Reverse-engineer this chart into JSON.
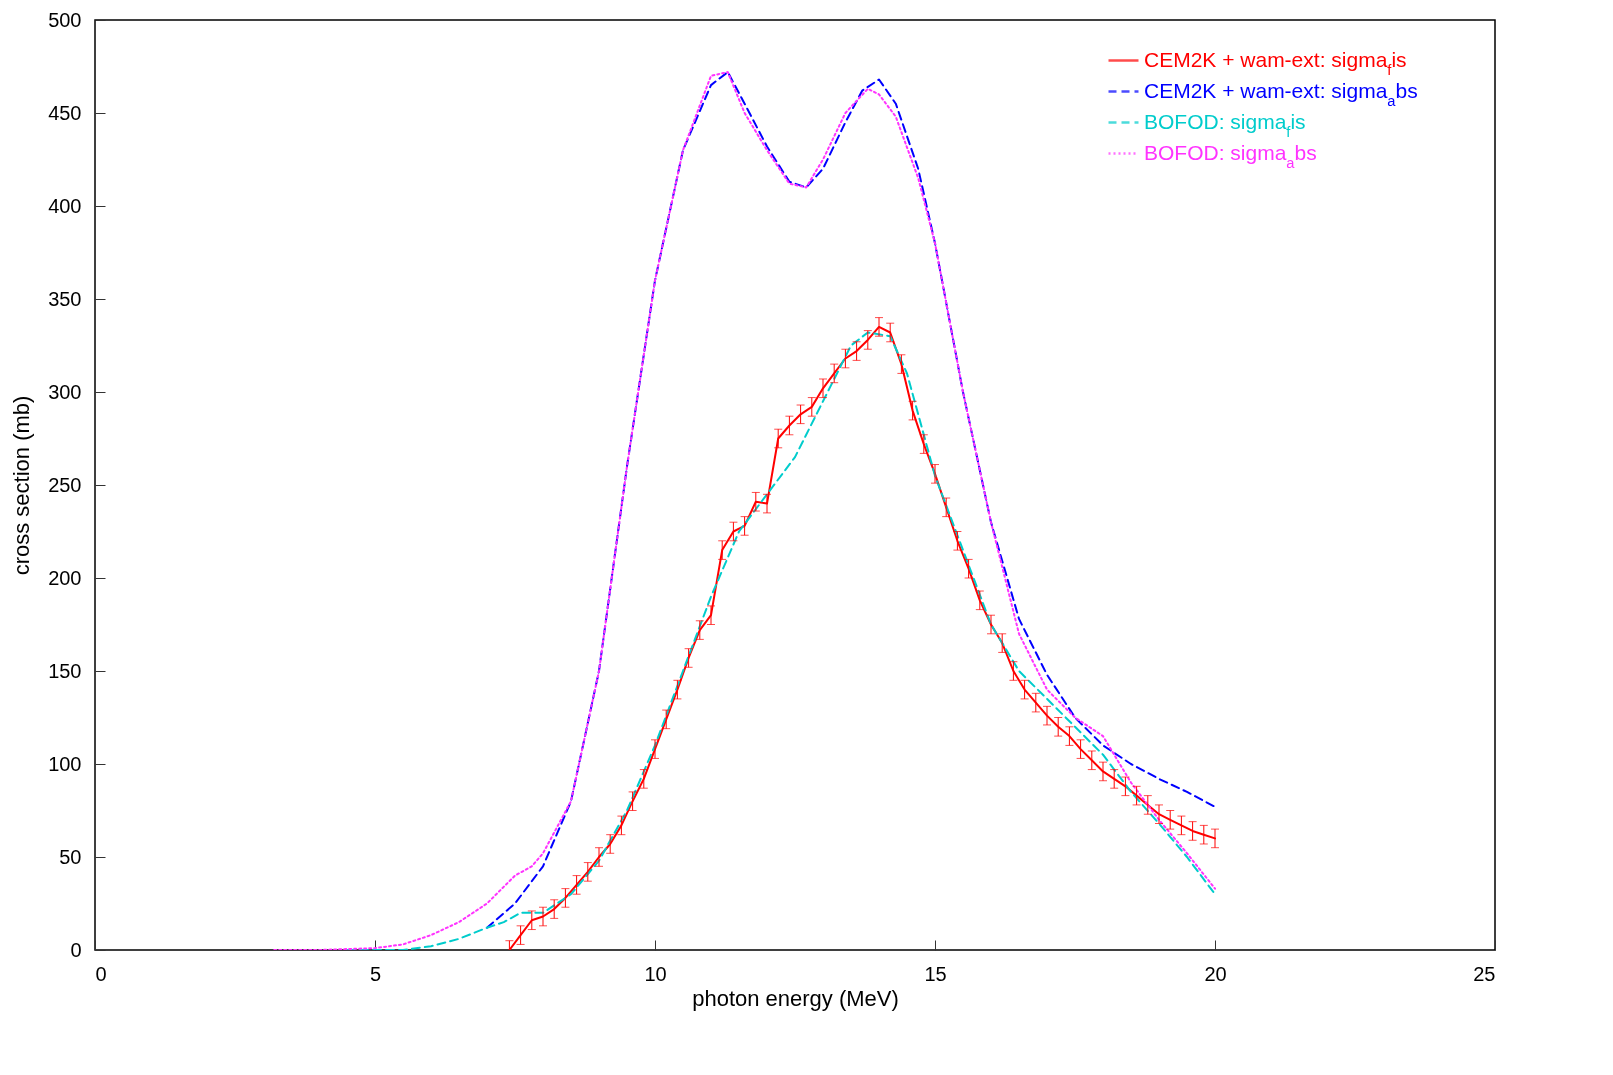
{
  "chart_data": {
    "type": "line",
    "xlabel": "photon energy (MeV)",
    "ylabel": "cross section (mb)",
    "xlim": [
      0,
      25
    ],
    "xticks": [
      0,
      5,
      10,
      15,
      20,
      25
    ],
    "ylim": [
      0,
      500
    ],
    "yticks": [
      0,
      50,
      100,
      150,
      200,
      250,
      300,
      350,
      400,
      450,
      500
    ],
    "grid": false,
    "legend": "top right",
    "series": [
      {
        "name": "CEM2K + wam-ext: sigma$_{f}$is",
        "color": "#ff0000",
        "line_style": "solid",
        "x": [
          7.4,
          7.6,
          7.8,
          8.0,
          8.2,
          8.4,
          8.6,
          8.8,
          9.0,
          9.2,
          9.4,
          9.6,
          9.8,
          10.0,
          10.2,
          10.4,
          10.6,
          10.8,
          11.0,
          11.2,
          11.4,
          11.6,
          11.8,
          12.0,
          12.2,
          12.4,
          12.6,
          12.8,
          13.0,
          13.2,
          13.4,
          13.6,
          13.8,
          14.0,
          14.2,
          14.4,
          14.6,
          14.8,
          15.0,
          15.2,
          15.4,
          15.6,
          15.8,
          16.0,
          16.2,
          16.4,
          16.6,
          16.8,
          17.0,
          17.2,
          17.4,
          17.6,
          17.8,
          18.0,
          18.2,
          18.4,
          18.6,
          18.8,
          19.0,
          19.2,
          19.4,
          19.6,
          19.8,
          20.0
        ],
        "values": [
          0,
          8,
          16,
          18,
          22,
          28,
          35,
          42,
          50,
          57,
          67,
          80,
          92,
          108,
          124,
          140,
          157,
          172,
          180,
          215,
          225,
          228,
          241,
          240,
          275,
          282,
          288,
          292,
          302,
          310,
          318,
          322,
          328,
          335,
          332,
          315,
          290,
          272,
          256,
          238,
          220,
          205,
          188,
          175,
          165,
          150,
          140,
          133,
          126,
          120,
          115,
          108,
          102,
          96,
          92,
          88,
          83,
          78,
          73,
          70,
          67,
          64,
          62,
          60
        ],
        "errors": [
          5,
          5,
          5,
          5,
          5,
          5,
          5,
          5,
          5,
          5,
          5,
          5,
          5,
          5,
          5,
          5,
          5,
          5,
          5,
          5,
          5,
          5,
          5,
          5,
          5,
          5,
          5,
          5,
          5,
          5,
          5,
          5,
          5,
          5,
          5,
          5,
          5,
          5,
          5,
          5,
          5,
          5,
          5,
          5,
          5,
          5,
          5,
          5,
          5,
          5,
          5,
          5,
          5,
          5,
          5,
          5,
          5,
          5,
          5,
          5,
          5,
          5,
          5,
          5
        ]
      },
      {
        "name": "CEM2K + wam-ext: sigma$_{a}$bs",
        "color": "#0000ff",
        "line_style": "dashed",
        "x": [
          7.0,
          7.5,
          8.0,
          8.5,
          9.0,
          9.5,
          10.0,
          10.5,
          11.0,
          11.3,
          11.6,
          12.0,
          12.4,
          12.7,
          13.0,
          13.4,
          13.7,
          14.0,
          14.3,
          14.7,
          15.0,
          15.5,
          16.0,
          16.5,
          17.0,
          17.5,
          18.0,
          18.5,
          19.0,
          19.5,
          20.0
        ],
        "values": [
          12,
          25,
          45,
          80,
          150,
          260,
          360,
          430,
          465,
          472,
          455,
          432,
          413,
          410,
          420,
          445,
          462,
          468,
          455,
          420,
          380,
          300,
          230,
          178,
          148,
          125,
          110,
          100,
          92,
          85,
          77
        ]
      },
      {
        "name": "BOFOD: sigma$_{f}$is",
        "color": "#00cccc",
        "line_style": "dashed",
        "x": [
          4.5,
          5.5,
          6.0,
          6.5,
          7.0,
          7.3,
          7.6,
          8.0,
          8.5,
          9.0,
          9.5,
          10.0,
          10.5,
          11.0,
          11.5,
          12.0,
          12.5,
          13.0,
          13.5,
          13.8,
          14.2,
          14.5,
          15.0,
          15.5,
          16.0,
          16.5,
          17.0,
          17.5,
          18.0,
          18.5,
          19.0,
          19.5,
          20.0
        ],
        "values": [
          0,
          0,
          2,
          6,
          12,
          15,
          20,
          20,
          30,
          48,
          75,
          110,
          150,
          190,
          225,
          245,
          265,
          295,
          325,
          332,
          330,
          310,
          255,
          215,
          175,
          150,
          135,
          120,
          105,
          85,
          68,
          50,
          30
        ]
      },
      {
        "name": "BOFOD: sigma$_{a}$bs",
        "color": "#ff33ff",
        "line_style": "dotted",
        "x": [
          3.2,
          4.0,
          5.0,
          5.5,
          6.0,
          6.5,
          7.0,
          7.5,
          7.8,
          8.0,
          8.5,
          9.0,
          9.5,
          10.0,
          10.5,
          11.0,
          11.3,
          11.6,
          12.0,
          12.4,
          12.7,
          13.0,
          13.4,
          13.8,
          14.0,
          14.3,
          14.7,
          15.0,
          15.5,
          16.0,
          16.5,
          17.0,
          17.5,
          18.0,
          18.2,
          18.5,
          19.0,
          19.5,
          20.0
        ],
        "values": [
          0,
          0,
          1,
          3,
          8,
          15,
          25,
          40,
          45,
          52,
          80,
          150,
          260,
          360,
          430,
          470,
          472,
          450,
          430,
          412,
          410,
          425,
          450,
          463,
          460,
          448,
          415,
          380,
          300,
          230,
          170,
          140,
          125,
          115,
          105,
          90,
          70,
          52,
          33
        ]
      }
    ]
  }
}
